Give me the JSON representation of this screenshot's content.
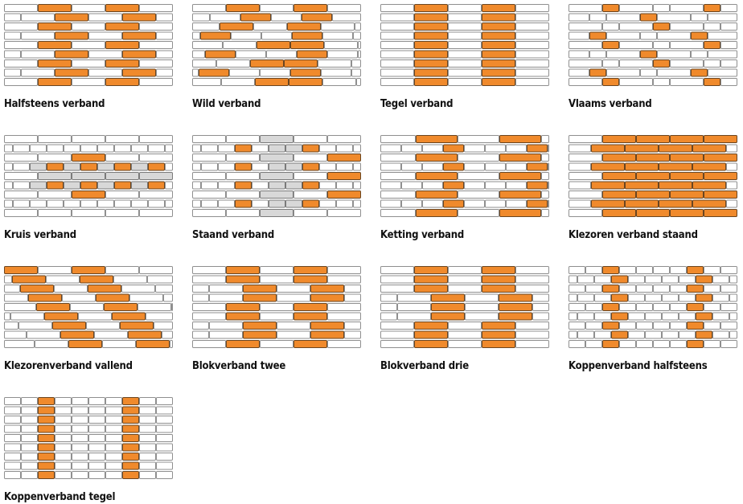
{
  "patterns": [
    {
      "label": "Halfsteens verband"
    },
    {
      "label": "Wild verband"
    },
    {
      "label": "Tegel verband"
    },
    {
      "label": "Vlaams verband"
    },
    {
      "label": "Kruis verband"
    },
    {
      "label": "Staand verband"
    },
    {
      "label": "Ketting verband"
    },
    {
      "label": "Klezoren verband staand"
    },
    {
      "label": "Klezorenverband vallend"
    },
    {
      "label": "Blokverband twee"
    },
    {
      "label": "Blokverband drie"
    },
    {
      "label": "Koppenverband halfsteens"
    },
    {
      "label": "Koppenverband tegel"
    }
  ]
}
